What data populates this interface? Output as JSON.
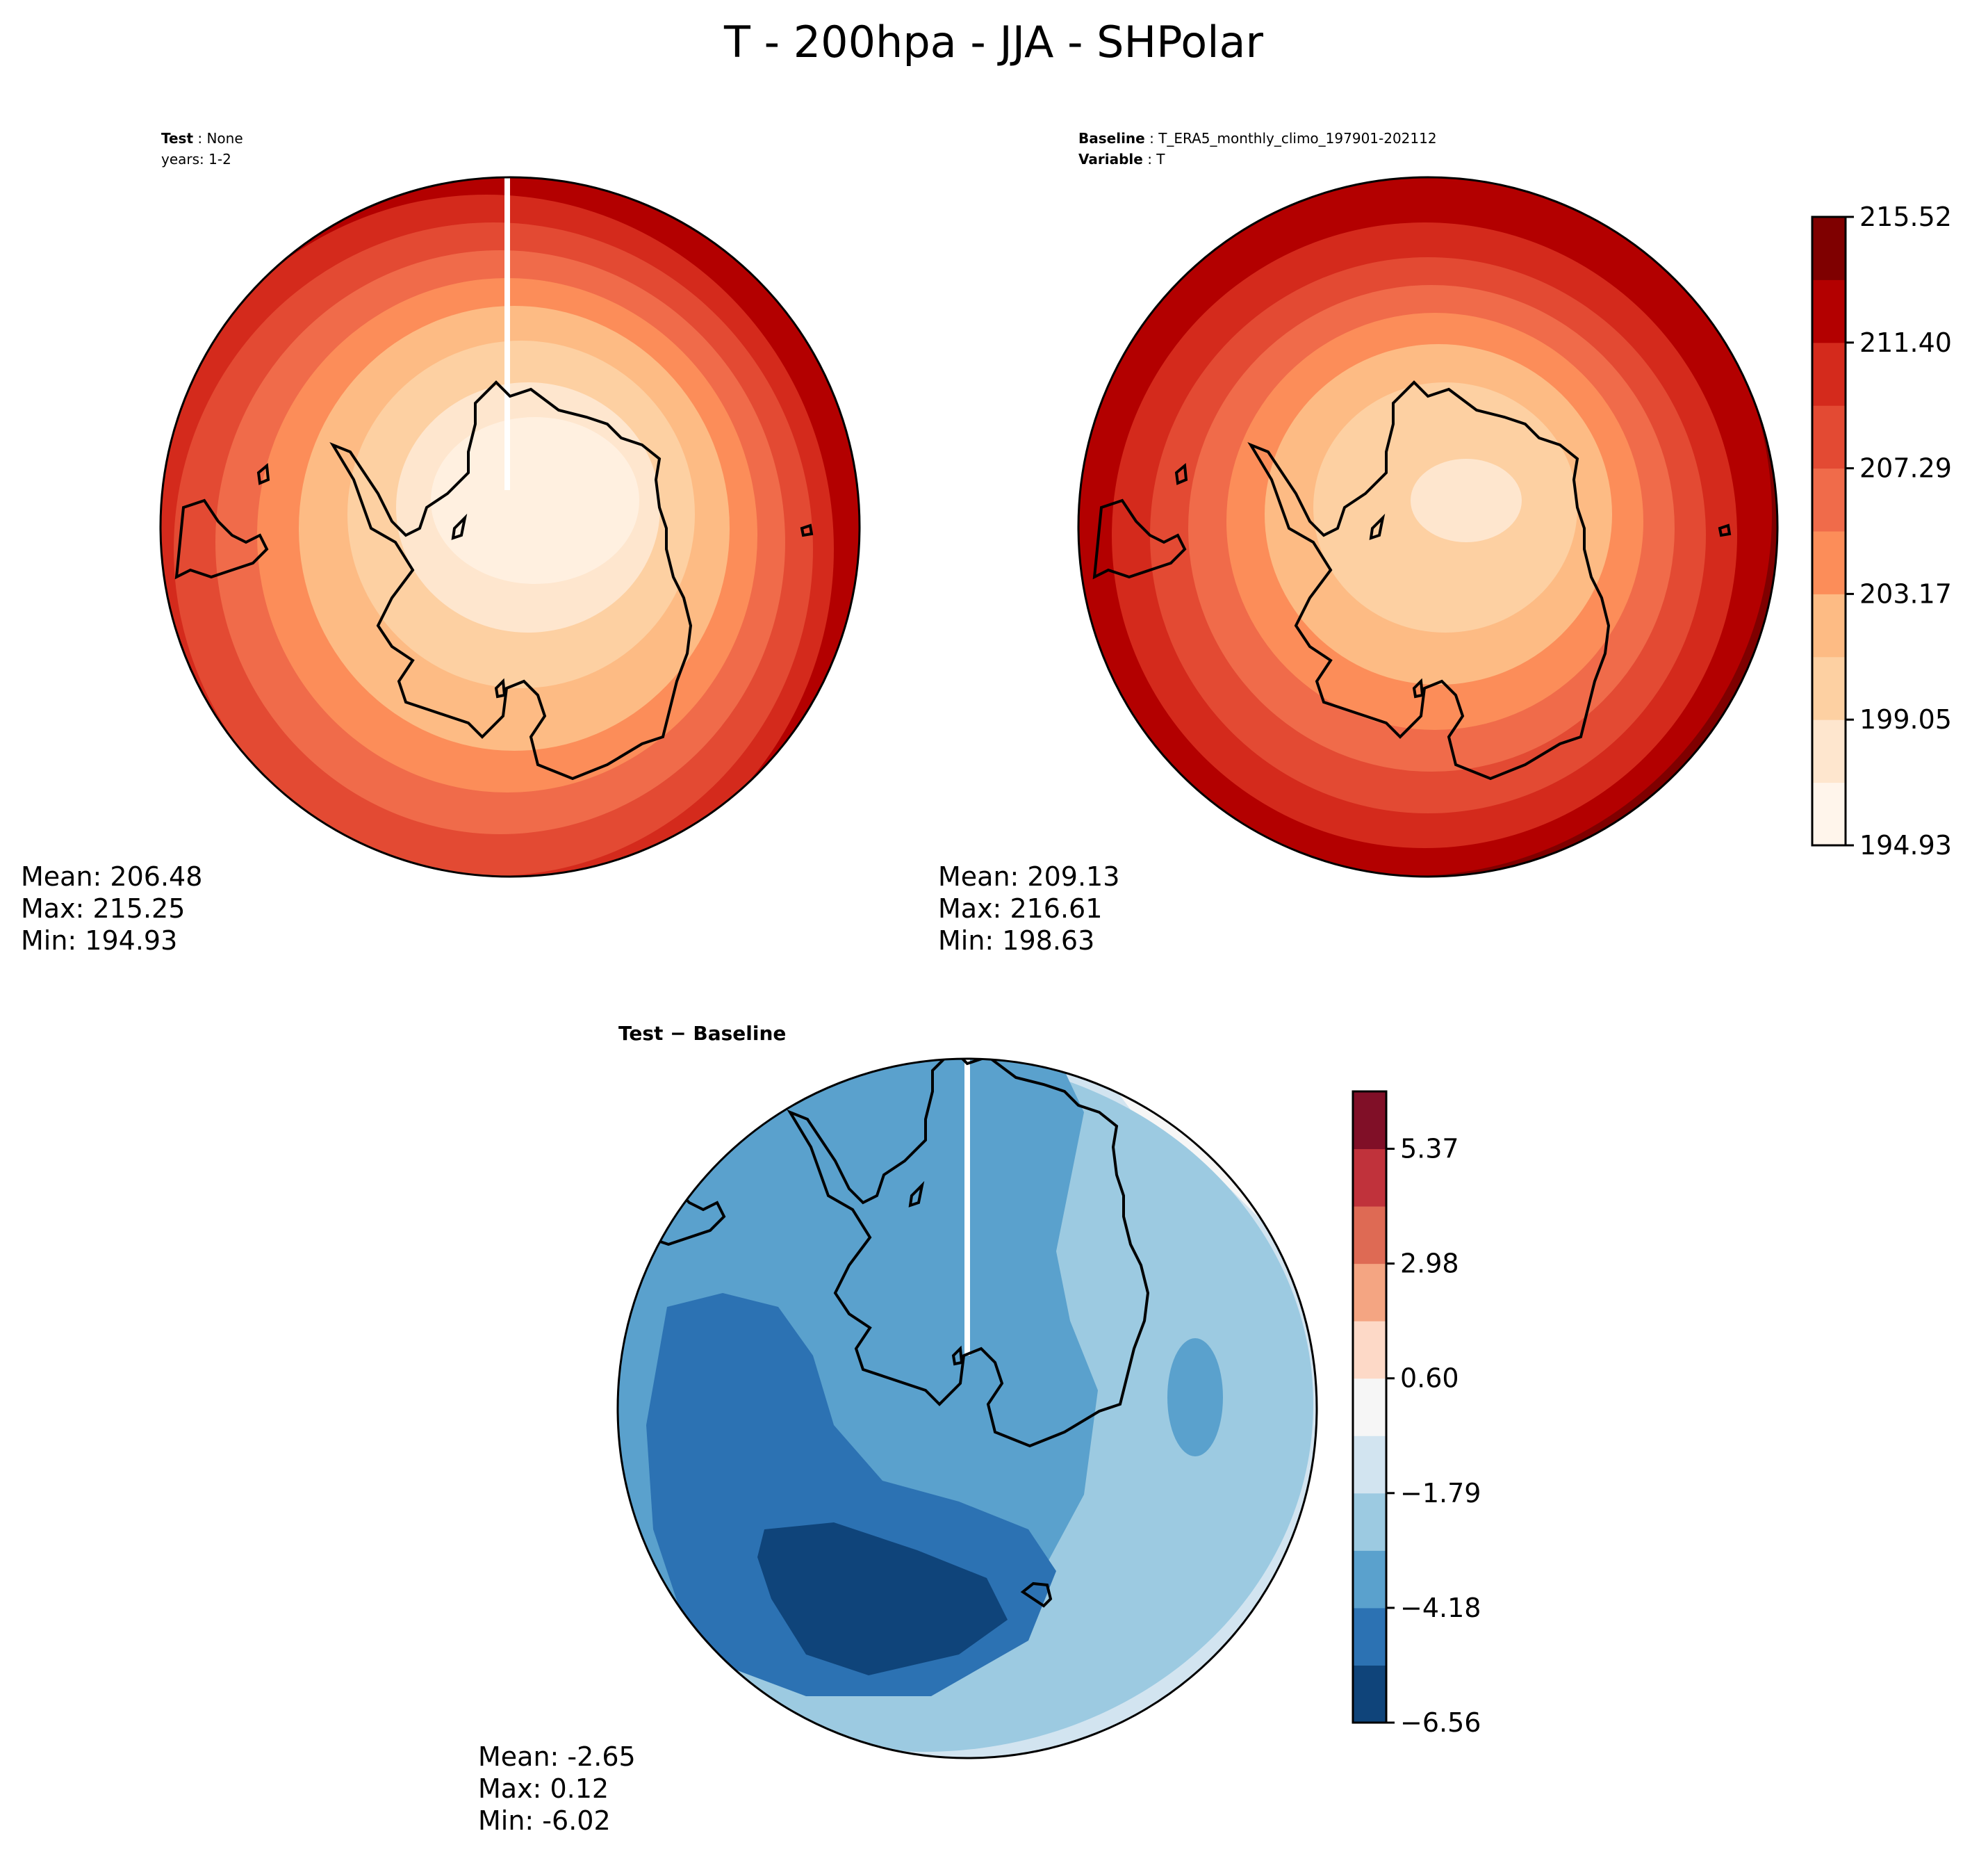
{
  "figure": {
    "title": "T - 200hpa - JJA - SHPolar"
  },
  "panels": {
    "test": {
      "label_key": "Test",
      "label_value": "None",
      "years_line": "years: 1-2",
      "mean": "Mean: 206.48",
      "max": "Max: 215.25",
      "min": "Min: 194.93"
    },
    "baseline": {
      "label_key": "Baseline",
      "label_value": "T_ERA5_monthly_climo_197901-202112",
      "variable_key": "Variable",
      "variable_value": "T",
      "mean": "Mean: 209.13",
      "max": "Max: 216.61",
      "min": "Min: 198.63"
    },
    "diff": {
      "label": "Test − Baseline",
      "mean": "Mean: -2.65",
      "max": "Max:  0.12",
      "min": "Min: -6.02"
    }
  },
  "colorbars": {
    "temperature": {
      "ticks": [
        "194.93",
        "199.05",
        "203.17",
        "207.29",
        "211.40",
        "215.52"
      ],
      "colors": [
        "#fff5eb",
        "#fee6ce",
        "#fdd0a2",
        "#fdbb84",
        "#fc8d59",
        "#f06b4a",
        "#e34a33",
        "#d42a1c",
        "#b30000",
        "#7f0000"
      ]
    },
    "difference": {
      "ticks": [
        "−6.56",
        "−4.18",
        "−1.79",
        "0.60",
        "2.98",
        "5.37"
      ],
      "colors": [
        "#0f447a",
        "#2c72b3",
        "#5aa1cd",
        "#9ccae1",
        "#d2e4f0",
        "#f6f6f6",
        "#fdd9c7",
        "#f4a582",
        "#de6a54",
        "#c0323b",
        "#800f27"
      ]
    }
  },
  "chart_data": {
    "type": "filled-contour polar maps",
    "fields": [
      {
        "name": "Test",
        "mean": 206.48,
        "max": 215.25,
        "min": 194.93
      },
      {
        "name": "Baseline",
        "mean": 209.13,
        "max": 216.61,
        "min": 198.63
      },
      {
        "name": "Test − Baseline",
        "mean": -2.65,
        "max": 0.12,
        "min": -6.02
      }
    ],
    "temperature_levels": [
      194.93,
      199.05,
      203.17,
      207.29,
      211.4,
      215.52
    ],
    "difference_levels": [
      -6.56,
      -4.18,
      -1.79,
      0.6,
      2.98,
      5.37
    ]
  }
}
